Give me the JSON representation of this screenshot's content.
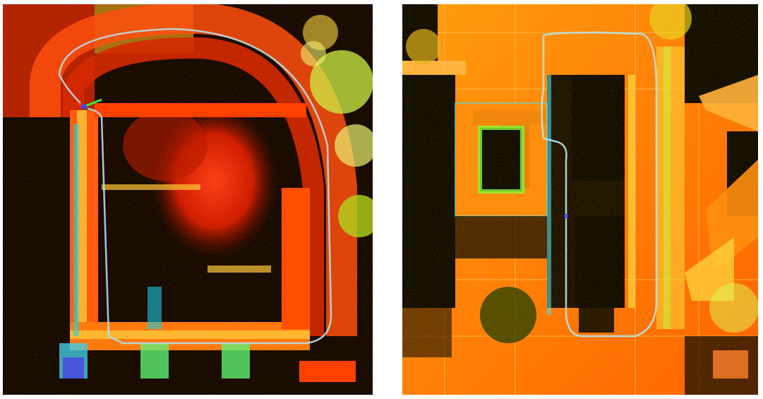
{
  "figure": {
    "panels": [
      {
        "id": "left",
        "description_icon": "point-cloud-map-icon"
      },
      {
        "id": "right",
        "description_icon": "point-cloud-map-icon"
      }
    ],
    "colors": {
      "background": "#000000",
      "high": "#ff2a00",
      "mid": "#ff8c00",
      "warm": "#ffcc00",
      "low": "#9cff00",
      "cool": "#00e0ff",
      "trajectory": "#aee8ff"
    }
  }
}
